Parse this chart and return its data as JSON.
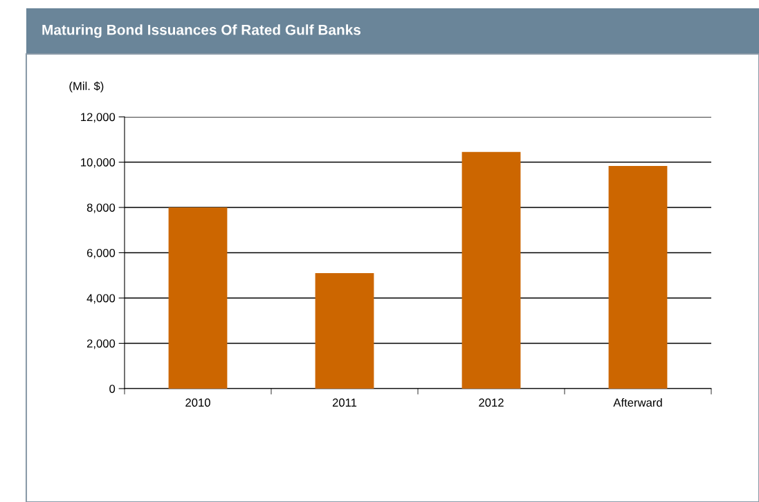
{
  "chart_data": {
    "type": "bar",
    "title": "Maturing Bond Issuances Of Rated Gulf Banks",
    "ylabel": "(Mil. $)",
    "categories": [
      "2010",
      "2011",
      "2012",
      "Afterward"
    ],
    "values": [
      8000,
      5100,
      10450,
      9830
    ],
    "color": "#cc6600",
    "ylim": [
      0,
      12000
    ],
    "yticks": [
      0,
      {
        "value": 2000,
        "label": "2,000"
      },
      {
        "value": 4000,
        "label": "4,000"
      },
      {
        "value": 6000,
        "label": "6,000"
      },
      {
        "value": 8000,
        "label": "8,000"
      },
      {
        "value": 10000,
        "label": "10,000"
      },
      {
        "value": 12000,
        "label": "12,000"
      }
    ],
    "grid": "y",
    "legend": false
  }
}
